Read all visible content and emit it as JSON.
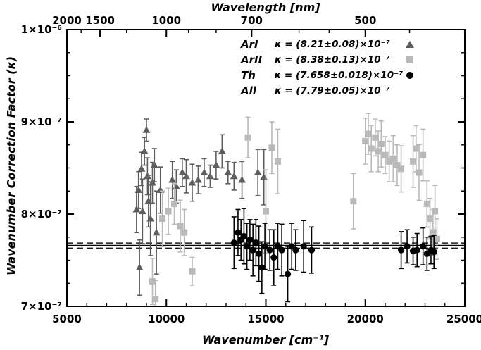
{
  "axes": {
    "y_title": "Wavenumber Correction Factor (κ)",
    "x_title": "Wavenumber [cm⁻¹]",
    "top_title": "Wavelength [nm]"
  },
  "legend": {
    "rows": [
      {
        "name": "ArI",
        "value": "κ = (8.21±0.08)×10⁻⁷",
        "marker": "triangle",
        "color": "#5e5e5e"
      },
      {
        "name": "ArII",
        "value": "κ = (8.38±0.13)×10⁻⁷",
        "marker": "square",
        "color": "#b9b9b9"
      },
      {
        "name": "Th",
        "value": "κ = (7.658±0.018)×10⁻⁷",
        "marker": "circle",
        "color": "#000000"
      },
      {
        "name": "All",
        "value": "κ = (7.79±0.05)×10⁻⁷",
        "marker": null,
        "color": "#000000"
      }
    ]
  },
  "chart_data": {
    "type": "scatter",
    "title": "",
    "x_axis": {
      "label": "Wavenumber [cm⁻¹]",
      "range": [
        5000,
        25000
      ],
      "ticks": [
        5000,
        10000,
        15000,
        20000,
        25000
      ],
      "tick_labels": [
        "5000",
        "10000",
        "15000",
        "20000",
        "25000"
      ],
      "minor_step": 1000
    },
    "y_axis": {
      "label": "Wavenumber Correction Factor (κ)",
      "range_e7": [
        7,
        10
      ],
      "ticks_e7": [
        7,
        8,
        9,
        10
      ],
      "tick_labels": [
        "7×10⁻⁷",
        "8×10⁻⁷",
        "9×10⁻⁷",
        "1×10⁻⁶"
      ],
      "minor_step_e7": 0.25
    },
    "top_axis": {
      "label": "Wavelength [nm]",
      "ticks_nm": [
        2000,
        1500,
        1000,
        700,
        500
      ],
      "tick_labels": [
        "2000",
        "1500",
        "1000",
        "700",
        "500"
      ],
      "minor_ticks_nm": [
        1750,
        1250,
        900,
        800,
        600,
        550,
        450
      ]
    },
    "reference_lines": [
      {
        "series": "Th mean",
        "style": "solid",
        "value_e7": 7.658,
        "color": "#000000",
        "width": 2
      },
      {
        "series": "Th mean upper",
        "style": "dashed",
        "value_e7": 7.686,
        "color": "#1a1a1a",
        "width": 1.6
      },
      {
        "series": "Th mean lower",
        "style": "dashed",
        "value_e7": 7.63,
        "color": "#1a1a1a",
        "width": 1.6
      }
    ],
    "series": [
      {
        "name": "ArI",
        "marker": "triangle",
        "color": "#5e5e5e",
        "kappa": "(8.21±0.08)×10⁻⁷",
        "points": [
          [
            8500,
            8.05,
            0.25
          ],
          [
            8600,
            8.26,
            0.2
          ],
          [
            8650,
            7.42,
            0.3
          ],
          [
            8750,
            8.49,
            0.18
          ],
          [
            8800,
            8.03,
            0.35
          ],
          [
            8900,
            8.68,
            0.15
          ],
          [
            9000,
            8.91,
            0.12
          ],
          [
            9050,
            8.41,
            0.2
          ],
          [
            9100,
            8.14,
            0.28
          ],
          [
            9200,
            7.95,
            0.4
          ],
          [
            9300,
            8.34,
            0.22
          ],
          [
            9400,
            8.53,
            0.18
          ],
          [
            9500,
            7.8,
            0.45
          ],
          [
            9700,
            8.26,
            0.25
          ],
          [
            10300,
            8.37,
            0.2
          ],
          [
            10500,
            8.3,
            0.18
          ],
          [
            10800,
            8.45,
            0.15
          ],
          [
            11000,
            8.41,
            0.18
          ],
          [
            11300,
            8.34,
            0.2
          ],
          [
            11600,
            8.37,
            0.15
          ],
          [
            11900,
            8.45,
            0.15
          ],
          [
            12200,
            8.41,
            0.12
          ],
          [
            12500,
            8.53,
            0.15
          ],
          [
            12800,
            8.68,
            0.18
          ],
          [
            13100,
            8.45,
            0.12
          ],
          [
            13400,
            8.41,
            0.15
          ],
          [
            13800,
            8.37,
            0.2
          ],
          [
            14600,
            8.45,
            0.25
          ],
          [
            14900,
            8.4,
            0.3
          ]
        ]
      },
      {
        "name": "ArII",
        "marker": "square",
        "color": "#b9b9b9",
        "kappa": "(8.38±0.13)×10⁻⁷",
        "points": [
          [
            9300,
            7.27,
            0.25
          ],
          [
            9450,
            7.08,
            0.2
          ],
          [
            9800,
            7.95,
            0.3
          ],
          [
            10100,
            8.03,
            0.25
          ],
          [
            10400,
            8.11,
            0.22
          ],
          [
            10700,
            7.87,
            0.28
          ],
          [
            10900,
            7.8,
            0.25
          ],
          [
            11300,
            7.38,
            0.15
          ],
          [
            14100,
            8.83,
            0.22
          ],
          [
            15000,
            8.03,
            0.45
          ],
          [
            15300,
            8.72,
            0.28
          ],
          [
            15600,
            8.57,
            0.35
          ],
          [
            19400,
            8.14,
            0.3
          ],
          [
            20000,
            8.79,
            0.25
          ],
          [
            20150,
            8.87,
            0.22
          ],
          [
            20300,
            8.71,
            0.25
          ],
          [
            20500,
            8.83,
            0.2
          ],
          [
            20650,
            8.68,
            0.22
          ],
          [
            20800,
            8.76,
            0.25
          ],
          [
            21000,
            8.64,
            0.2
          ],
          [
            21200,
            8.57,
            0.22
          ],
          [
            21400,
            8.6,
            0.25
          ],
          [
            21600,
            8.53,
            0.22
          ],
          [
            21800,
            8.49,
            0.25
          ],
          [
            22400,
            8.57,
            0.28
          ],
          [
            22550,
            8.71,
            0.25
          ],
          [
            22700,
            8.45,
            0.3
          ],
          [
            22900,
            8.64,
            0.28
          ],
          [
            23100,
            8.11,
            0.25
          ],
          [
            23250,
            7.95,
            0.22
          ],
          [
            23400,
            7.8,
            0.25
          ],
          [
            23500,
            8.03,
            0.28
          ],
          [
            23600,
            7.73,
            0.22
          ]
        ]
      },
      {
        "name": "Th",
        "marker": "circle",
        "color": "#000000",
        "kappa": "(7.658±0.018)×10⁻⁷",
        "points": [
          [
            13400,
            7.69,
            0.28
          ],
          [
            13600,
            7.8,
            0.25
          ],
          [
            13750,
            7.72,
            0.22
          ],
          [
            13900,
            7.76,
            0.3
          ],
          [
            14050,
            7.65,
            0.25
          ],
          [
            14200,
            7.72,
            0.22
          ],
          [
            14350,
            7.61,
            0.28
          ],
          [
            14500,
            7.69,
            0.25
          ],
          [
            14650,
            7.57,
            0.3
          ],
          [
            14800,
            7.42,
            0.28
          ],
          [
            14950,
            7.65,
            0.25
          ],
          [
            15200,
            7.61,
            0.22
          ],
          [
            15400,
            7.53,
            0.3
          ],
          [
            15600,
            7.65,
            0.25
          ],
          [
            15800,
            7.61,
            0.28
          ],
          [
            16100,
            7.35,
            0.3
          ],
          [
            16300,
            7.65,
            0.25
          ],
          [
            16500,
            7.61,
            0.22
          ],
          [
            16900,
            7.65,
            0.28
          ],
          [
            17300,
            7.61,
            0.25
          ],
          [
            21800,
            7.61,
            0.2
          ],
          [
            22100,
            7.65,
            0.18
          ],
          [
            22400,
            7.6,
            0.15
          ],
          [
            22600,
            7.61,
            0.18
          ],
          [
            22900,
            7.65,
            0.2
          ],
          [
            23100,
            7.57,
            0.18
          ],
          [
            23300,
            7.61,
            0.15
          ],
          [
            23450,
            7.59,
            0.18
          ]
        ]
      }
    ]
  }
}
